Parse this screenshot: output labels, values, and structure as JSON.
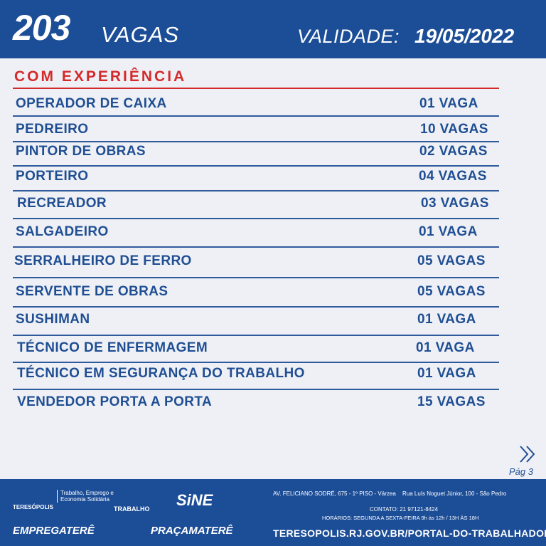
{
  "header": {
    "count": "203",
    "unit": "VAGAS",
    "validity_label": "VALIDADE:",
    "validity_date": "19/05/2022"
  },
  "section": {
    "title": "COM EXPERIÊNCIA",
    "rows": [
      [
        "OPERADOR DE CAIXA",
        "01 VAGA"
      ],
      [
        "PEDREIRO",
        "10 VAGAS"
      ],
      [
        "PINTOR DE OBRAS",
        "02 VAGAS"
      ],
      [
        "PORTEIRO",
        "04 VAGAS"
      ],
      [
        "RECREADOR",
        "03 VAGAS"
      ],
      [
        "SALGADEIRO",
        "01 VAGA"
      ],
      [
        "SERRALHEIRO DE FERRO",
        "05 VAGAS"
      ],
      [
        "SERVENTE DE OBRAS",
        "05 VAGAS"
      ],
      [
        "SUSHIMAN",
        "01 VAGA"
      ],
      [
        "TÉCNICO DE ENFERMAGEM",
        "01 VAGA"
      ],
      [
        "TÉCNICO EM SEGURANÇA DO TRABALHO",
        "01 VAGA"
      ],
      [
        "VENDEDOR PORTA A PORTA",
        "15 VAGAS"
      ]
    ]
  },
  "page": "Pág 3",
  "footer": {
    "city": "TERESÓPOLIS",
    "secretariat": "Trabalho, Emprego e Economia Solidária",
    "labor": "TRABALHO",
    "sine": "SiNE",
    "empregatere": "EMPREGATERÊ",
    "pracamatere": "PRAÇAMATERÊ",
    "address_1": "AV. FELICIANO SODRÉ, 675 - 1º PISO - Várzea",
    "address_2": "Rua Luís Noguet Júnior, 100 - São Pedro",
    "contact": "CONTATO: 21 97121-8424",
    "hours": "HORÁRIOS: SEGUNDA A SEXTA-FEIRA 9h às 12h / 13H ÀS 18H",
    "url": "TERESOPOLIS.RJ.GOV.BR/PORTAL-DO-TRABALHADOR"
  }
}
